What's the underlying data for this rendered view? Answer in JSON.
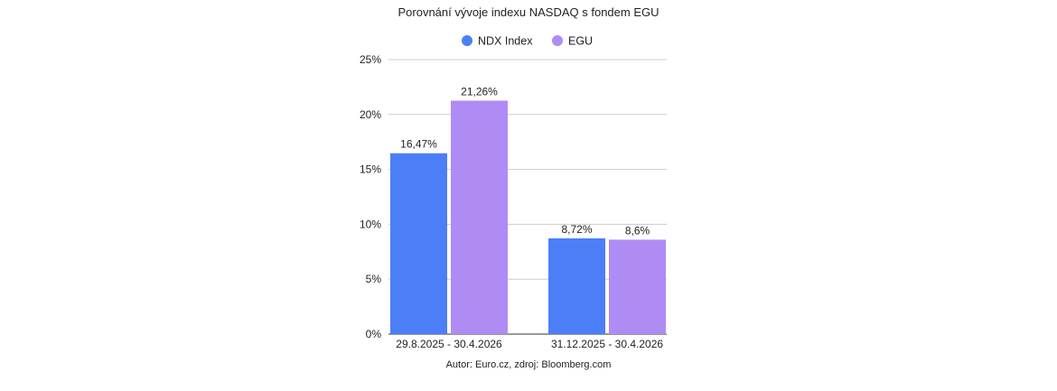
{
  "chart_data": {
    "type": "bar",
    "title": "Porovnání vývoje indexu NASDAQ s fondem EGU",
    "categories": [
      "29.8.2025 - 30.4.2026",
      "31.12.2025 - 30.4.2026"
    ],
    "series": [
      {
        "name": "NDX Index",
        "color": "#4c7ff7",
        "values": [
          16.47,
          8.72
        ],
        "labels": [
          "16,47%",
          "8,72%"
        ]
      },
      {
        "name": "EGU",
        "color": "#af8cf4",
        "values": [
          21.26,
          8.6
        ],
        "labels": [
          "21,26%",
          "8,6%"
        ]
      }
    ],
    "ylim": [
      0,
      25
    ],
    "yticks": [
      0,
      5,
      10,
      15,
      20,
      25
    ],
    "ytick_labels": [
      "0%",
      "5%",
      "10%",
      "15%",
      "20%",
      "25%"
    ],
    "xlabel": "",
    "ylabel": "",
    "grid": true,
    "legend_position": "top-center",
    "source": "Autor: Euro.cz, zdroj: Bloomberg.com"
  }
}
